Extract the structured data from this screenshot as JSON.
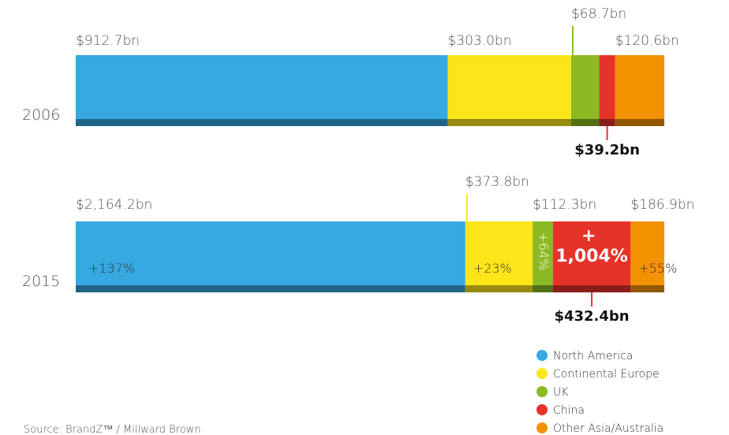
{
  "chart_data": {
    "type": "stacked_bar_normalized",
    "categories": [
      "2006",
      "2015"
    ],
    "series": [
      {
        "name": "North America",
        "color": "#36a9e1",
        "values": [
          912.7,
          2164.2
        ],
        "value_labels": [
          "$912.7bn",
          "$2,164.2bn"
        ],
        "change_labels": [
          null,
          "+137%"
        ],
        "changes": [
          null,
          137
        ]
      },
      {
        "name": "Continental Europe",
        "color": "#fce61a",
        "values": [
          303.0,
          373.8
        ],
        "value_labels": [
          "$303.0bn",
          "$373.8bn"
        ],
        "change_labels": [
          null,
          "+23%"
        ],
        "changes": [
          null,
          23
        ]
      },
      {
        "name": "UK",
        "color": "#8cba24",
        "values": [
          68.7,
          112.3
        ],
        "value_labels": [
          "$68.7bn",
          "$112.3bn"
        ],
        "change_labels": [
          null,
          "+64%"
        ],
        "changes": [
          null,
          64
        ]
      },
      {
        "name": "China",
        "color": "#e6332a",
        "values": [
          39.2,
          432.4
        ],
        "value_labels": [
          "$39.2bn",
          "$432.4bn"
        ],
        "change_labels": [
          null,
          "+ 1,004%"
        ],
        "changes": [
          null,
          1004
        ]
      },
      {
        "name": "Other Asia/Australia",
        "color": "#f39200",
        "values": [
          120.6,
          186.9
        ],
        "value_labels": [
          "$120.6bn",
          "$186.9bn"
        ],
        "change_labels": [
          null,
          "+55%"
        ],
        "changes": [
          null,
          55
        ]
      }
    ],
    "source": "Source:  BrandZ™ / Millward Brown"
  }
}
